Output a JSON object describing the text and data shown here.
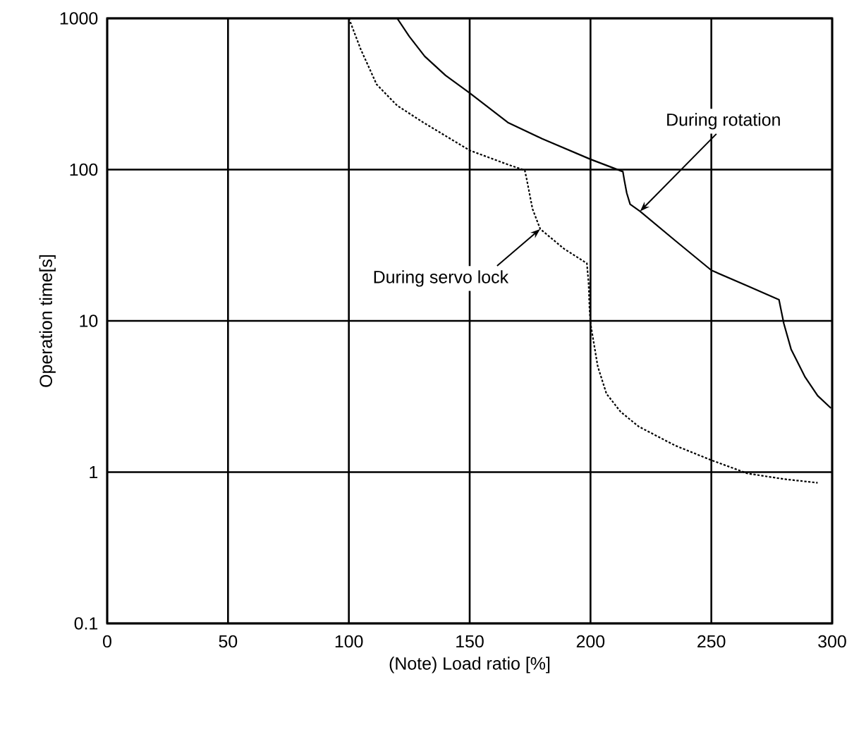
{
  "chart_data": {
    "type": "line",
    "xlabel": "(Note) Load ratio [%]",
    "ylabel": "Operation time[s]",
    "xlim": [
      0,
      300
    ],
    "xticks": [
      0,
      50,
      100,
      150,
      200,
      250,
      300
    ],
    "ylim": [
      0.1,
      1000
    ],
    "yticks": [
      0.1,
      1,
      10,
      100,
      1000
    ],
    "log": "y",
    "grid": true,
    "marker": "none",
    "series": [
      {
        "color": "#000000",
        "line_style": "solid",
        "x": [
          120,
          125,
          131.4,
          140,
          150,
          165.8,
          180,
          200,
          213.4,
          214,
          215,
          216.4,
          220.5,
          235,
          250,
          265,
          278,
          279,
          280,
          283,
          288.8,
          294,
          299.5
        ],
        "values": [
          1000,
          760,
          561,
          420,
          321,
          205,
          160,
          117,
          97,
          85,
          70,
          59,
          53,
          34,
          21.6,
          17,
          13.8,
          11.5,
          9.6,
          6.5,
          4.25,
          3.2,
          2.65
        ]
      },
      {
        "color": "#000000",
        "line_style": "dotted",
        "x": [
          100,
          105,
          111.5,
          120,
          130.8,
          150,
          165.8,
          172.8,
          173.5,
          174.5,
          176,
          179.2,
          189,
          198.5,
          199.2,
          199.6,
          200,
          203,
          206.6,
          212.5,
          220,
          235,
          250,
          265,
          280,
          294
        ],
        "values": [
          1000,
          620,
          366,
          265,
          205,
          134,
          108,
          99,
          88,
          73,
          55,
          40.5,
          30,
          24,
          18,
          12,
          9.6,
          5,
          3.3,
          2.5,
          2.0,
          1.5,
          1.2,
          0.98,
          0.9,
          0.85
        ]
      }
    ],
    "annotations": [
      {
        "text": "During rotation",
        "x": 220.5,
        "y": 53
      },
      {
        "text": "During servo lock",
        "x": 179.2,
        "y": 40.5
      }
    ]
  }
}
